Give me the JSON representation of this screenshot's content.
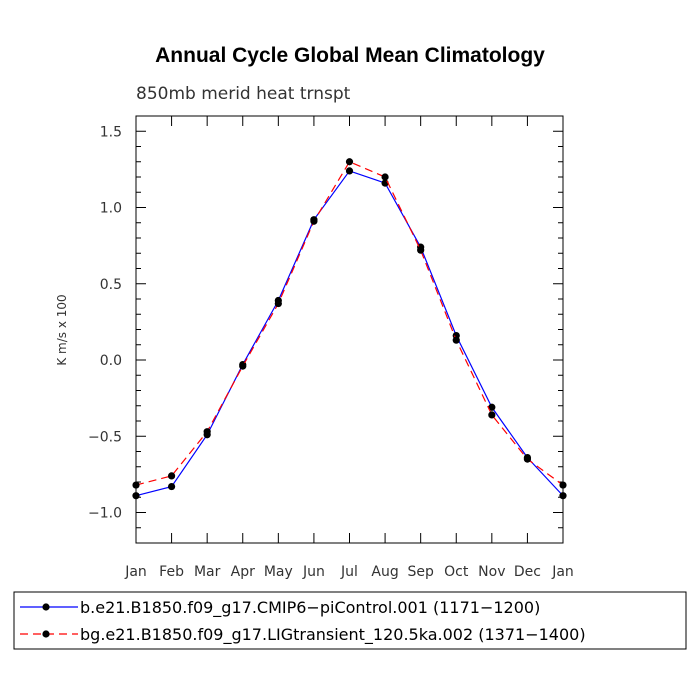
{
  "chart_data": {
    "type": "line",
    "title": "Annual Cycle Global Mean Climatology",
    "subtitle": "850mb merid heat trnspt",
    "xlabel": "",
    "ylabel": "K m/s x 100",
    "categories": [
      "Jan",
      "Feb",
      "Mar",
      "Apr",
      "May",
      "Jun",
      "Jul",
      "Aug",
      "Sep",
      "Oct",
      "Nov",
      "Dec",
      "Jan"
    ],
    "ylim": [
      -1.2,
      1.6
    ],
    "yticks": [
      -1.0,
      -0.5,
      0.0,
      0.5,
      1.0,
      1.5
    ],
    "ytick_labels": [
      "−1.0",
      "−0.5",
      "0.0",
      "0.5",
      "1.0",
      "1.5"
    ],
    "grid": false,
    "legend_placement": "bottom",
    "series": [
      {
        "name": "b.e21.B1850.f09_g17.CMIP6−piControl.001 (1171−1200)",
        "color": "#0000ff",
        "dash": "solid",
        "marker": "dot",
        "values": [
          -0.89,
          -0.83,
          -0.49,
          -0.03,
          0.39,
          0.92,
          1.24,
          1.16,
          0.74,
          0.16,
          -0.31,
          -0.64,
          -0.89
        ]
      },
      {
        "name": "bg.e21.B1850.f09_g17.LIGtransient_120.5ka.002 (1371−1400)",
        "color": "#ff0000",
        "dash": "dashed",
        "marker": "dot",
        "values": [
          -0.82,
          -0.76,
          -0.47,
          -0.04,
          0.37,
          0.91,
          1.3,
          1.2,
          0.72,
          0.13,
          -0.36,
          -0.65,
          -0.82
        ]
      }
    ]
  }
}
